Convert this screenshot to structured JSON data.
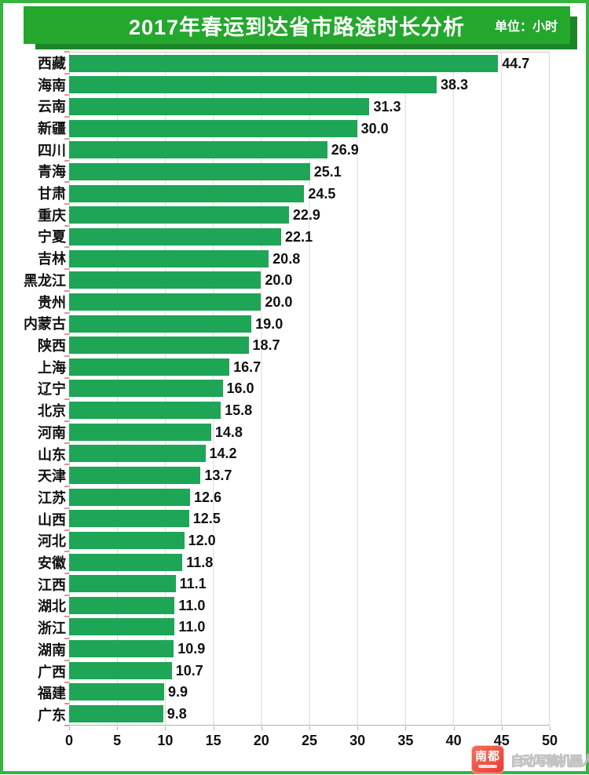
{
  "header": {
    "title": "2017年春运到达省市路途时长分析",
    "unit_label": "单位：小时",
    "banner_color": "#23a72c",
    "banner_shadow_color": "#1d8526"
  },
  "chart_data": {
    "type": "bar",
    "orientation": "horizontal",
    "title": "2017年春运到达省市路途时长分析",
    "unit": "小时",
    "categories": [
      "西藏",
      "海南",
      "云南",
      "新疆",
      "四川",
      "青海",
      "甘肃",
      "重庆",
      "宁夏",
      "吉林",
      "黑龙江",
      "贵州",
      "内蒙古",
      "陕西",
      "上海",
      "辽宁",
      "北京",
      "河南",
      "山东",
      "天津",
      "江苏",
      "山西",
      "河北",
      "安徽",
      "江西",
      "湖北",
      "浙江",
      "湖南",
      "广西",
      "福建",
      "广东"
    ],
    "values": [
      44.7,
      38.3,
      31.3,
      30.0,
      26.9,
      25.1,
      24.5,
      22.9,
      22.1,
      20.8,
      20.0,
      20.0,
      19.0,
      18.7,
      16.7,
      16.0,
      15.8,
      14.8,
      14.2,
      13.7,
      12.6,
      12.5,
      12.0,
      11.8,
      11.1,
      11.0,
      11.0,
      10.9,
      10.7,
      9.9,
      9.8
    ],
    "xlim": [
      0,
      50
    ],
    "x_ticks": [
      0,
      5,
      10,
      15,
      20,
      25,
      30,
      35,
      40,
      45,
      50
    ],
    "bar_color": "#1ea556",
    "gridlines": true,
    "gridline_color": "#d9d9d9",
    "value_labels": "shown, one decimal"
  },
  "footer": {
    "logo_text": "南都",
    "watermark": "自动写稿机器人"
  }
}
